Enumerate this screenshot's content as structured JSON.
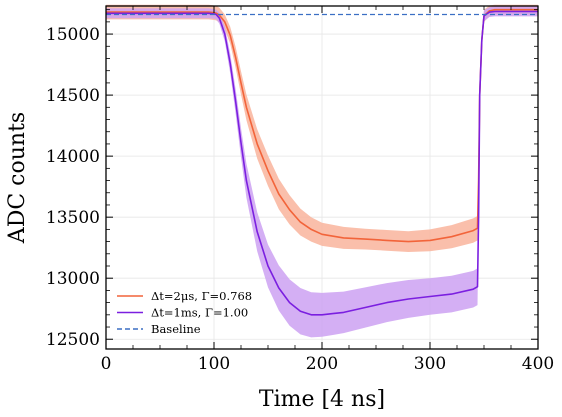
{
  "chart_data": {
    "type": "line",
    "title": "",
    "xlabel": "Time [4 ns]",
    "ylabel": "ADC counts",
    "xlim": [
      0,
      400
    ],
    "ylim": [
      12420,
      15230
    ],
    "xticks": [
      0,
      100,
      200,
      300,
      400
    ],
    "yticks": [
      12500,
      13000,
      13500,
      14000,
      14500,
      15000
    ],
    "grid": true,
    "legend_position": "lower-left",
    "series": [
      {
        "name": "Δt=2μs, Γ=0.768",
        "color": "#f2643a",
        "band_color": "#f9b49c",
        "x": [
          0,
          95,
          100,
          102,
          105,
          110,
          115,
          120,
          125,
          130,
          140,
          150,
          160,
          170,
          180,
          190,
          200,
          220,
          240,
          260,
          280,
          300,
          320,
          340,
          344,
          345,
          346,
          348,
          350,
          355,
          360,
          370,
          380,
          400
        ],
        "y": [
          15180,
          15180,
          15175,
          15172,
          15155,
          15100,
          14990,
          14810,
          14600,
          14400,
          14100,
          13880,
          13690,
          13560,
          13460,
          13400,
          13360,
          13330,
          13320,
          13310,
          13300,
          13310,
          13340,
          13390,
          13410,
          13800,
          14500,
          14950,
          15150,
          15190,
          15200,
          15200,
          15200,
          15200
        ],
        "band": [
          60,
          60,
          60,
          60,
          60,
          60,
          70,
          85,
          95,
          105,
          120,
          125,
          125,
          120,
          110,
          100,
          95,
          90,
          85,
          85,
          85,
          90,
          95,
          100,
          100,
          90,
          70,
          60,
          50,
          45,
          40,
          40,
          40,
          40
        ]
      },
      {
        "name": "Δt=1ms, Γ=1.00",
        "color": "#7b1fe0",
        "band_color": "#cda1f2",
        "x": [
          0,
          95,
          100,
          102,
          105,
          110,
          115,
          120,
          125,
          130,
          140,
          150,
          160,
          170,
          180,
          190,
          200,
          210,
          220,
          240,
          260,
          280,
          300,
          320,
          340,
          344,
          345,
          346,
          348,
          350,
          355,
          360,
          370,
          380,
          400
        ],
        "y": [
          15170,
          15170,
          15165,
          15160,
          15130,
          15000,
          14760,
          14450,
          14110,
          13800,
          13380,
          13100,
          12920,
          12800,
          12730,
          12700,
          12700,
          12710,
          12720,
          12760,
          12800,
          12830,
          12850,
          12870,
          12910,
          12930,
          13500,
          14500,
          14950,
          15150,
          15180,
          15185,
          15185,
          15185,
          15185
        ],
        "band": [
          40,
          40,
          40,
          40,
          45,
          60,
          80,
          100,
          120,
          140,
          160,
          175,
          185,
          190,
          190,
          185,
          180,
          175,
          170,
          165,
          160,
          155,
          150,
          150,
          150,
          150,
          100,
          60,
          50,
          45,
          40,
          40,
          40,
          40,
          40
        ]
      },
      {
        "name": "Baseline",
        "color": "#3b6fc4",
        "dashed": true,
        "x": [
          0,
          400
        ],
        "y": [
          15160,
          15160
        ]
      }
    ]
  }
}
